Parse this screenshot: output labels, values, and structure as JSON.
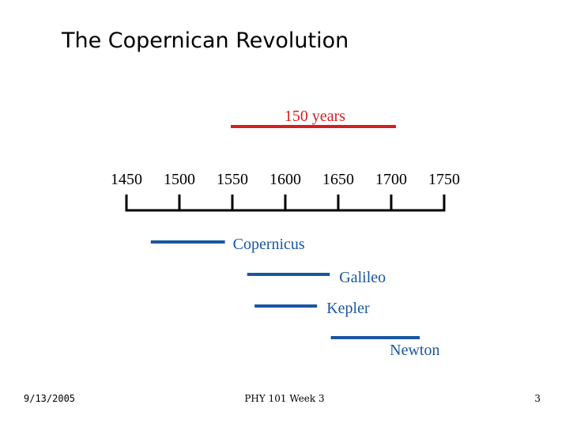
{
  "slide": {
    "title": "The Copernican Revolution",
    "footer_date": "9/13/2005",
    "footer_course": "PHY 101 Week 3",
    "page_number": "3"
  },
  "colors": {
    "span_red": "#d42020",
    "life_blue": "#1a56a0",
    "axis": "#000000"
  },
  "timeline": {
    "ticks": [
      1450,
      1500,
      1550,
      1600,
      1650,
      1700,
      1750
    ],
    "tick_labels": [
      "1450",
      "1500",
      "1550",
      "1600",
      "1650",
      "1700",
      "1750"
    ],
    "span": {
      "label": "150 years",
      "start": 1550,
      "end": 1700
    },
    "lifespans": [
      {
        "name": "Copernicus",
        "start": 1473,
        "end": 1543
      },
      {
        "name": "Galileo",
        "start": 1564,
        "end": 1642
      },
      {
        "name": "Kepler",
        "start": 1571,
        "end": 1630
      },
      {
        "name": "Newton",
        "start": 1643,
        "end": 1727
      }
    ]
  }
}
